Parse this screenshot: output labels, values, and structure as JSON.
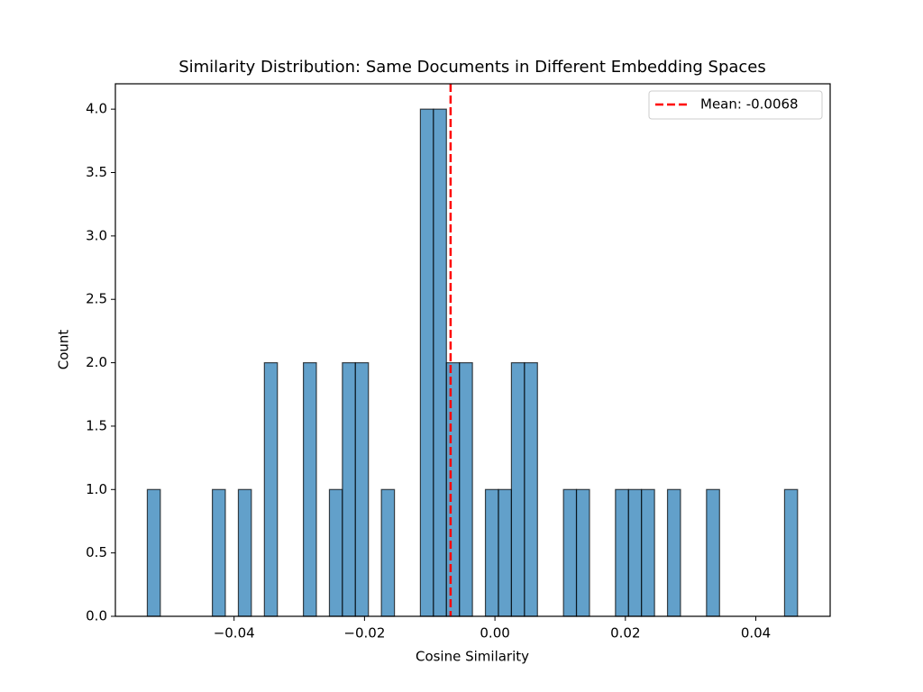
{
  "chart_data": {
    "type": "histogram",
    "title": "Similarity Distribution: Same Documents in Different Embedding Spaces",
    "xlabel": "Cosine Similarity",
    "ylabel": "Count",
    "bins": [
      -0.0533,
      -0.05131,
      -0.04931,
      -0.04732,
      -0.04532,
      -0.04333,
      -0.04134,
      -0.03934,
      -0.03735,
      -0.03535,
      -0.03336,
      -0.03137,
      -0.02937,
      -0.02738,
      -0.02538,
      -0.02339,
      -0.0214,
      -0.0194,
      -0.01741,
      -0.01541,
      -0.01342,
      -0.01143,
      -0.00943,
      -0.00744,
      -0.00544,
      -0.00345,
      -0.00146,
      0.00054,
      0.00253,
      0.00453,
      0.00652,
      0.00851,
      0.01051,
      0.0125,
      0.0145,
      0.01649,
      0.01848,
      0.02048,
      0.02247,
      0.02447,
      0.02646,
      0.02845,
      0.03045,
      0.03244,
      0.03444,
      0.03643,
      0.03842,
      0.04042,
      0.04241,
      0.04441,
      0.0464
    ],
    "values": [
      1,
      0,
      0,
      0,
      0,
      1,
      0,
      1,
      0,
      2,
      0,
      0,
      2,
      0,
      1,
      2,
      2,
      0,
      1,
      0,
      0,
      4,
      4,
      2,
      2,
      0,
      1,
      1,
      2,
      2,
      0,
      0,
      1,
      1,
      0,
      0,
      1,
      1,
      1,
      0,
      1,
      0,
      0,
      1,
      0,
      0,
      0,
      0,
      0,
      1
    ],
    "color": "#1f77b4",
    "mean_line": {
      "value": -0.0068,
      "label": "Mean: -0.0068",
      "color": "#ff0000"
    },
    "legend": "upper right",
    "xlim": [
      -0.0582,
      0.0514
    ],
    "xticks": [
      {
        "value": -0.04,
        "label": "−0.04"
      },
      {
        "value": -0.02,
        "label": "−0.02"
      },
      {
        "value": 0,
        "label": "0.00"
      },
      {
        "value": 0.02,
        "label": "0.02"
      },
      {
        "value": 0.04,
        "label": "0.04"
      }
    ],
    "ylim": [
      0,
      4.2
    ],
    "yticks": [
      {
        "value": 0,
        "label": "0.0"
      },
      {
        "value": 0.5,
        "label": "0.5"
      },
      {
        "value": 1,
        "label": "1.0"
      },
      {
        "value": 1.5,
        "label": "1.5"
      },
      {
        "value": 2,
        "label": "2.0"
      },
      {
        "value": 2.5,
        "label": "2.5"
      },
      {
        "value": 3,
        "label": "3.0"
      },
      {
        "value": 3.5,
        "label": "3.5"
      },
      {
        "value": 4,
        "label": "4.0"
      }
    ]
  }
}
